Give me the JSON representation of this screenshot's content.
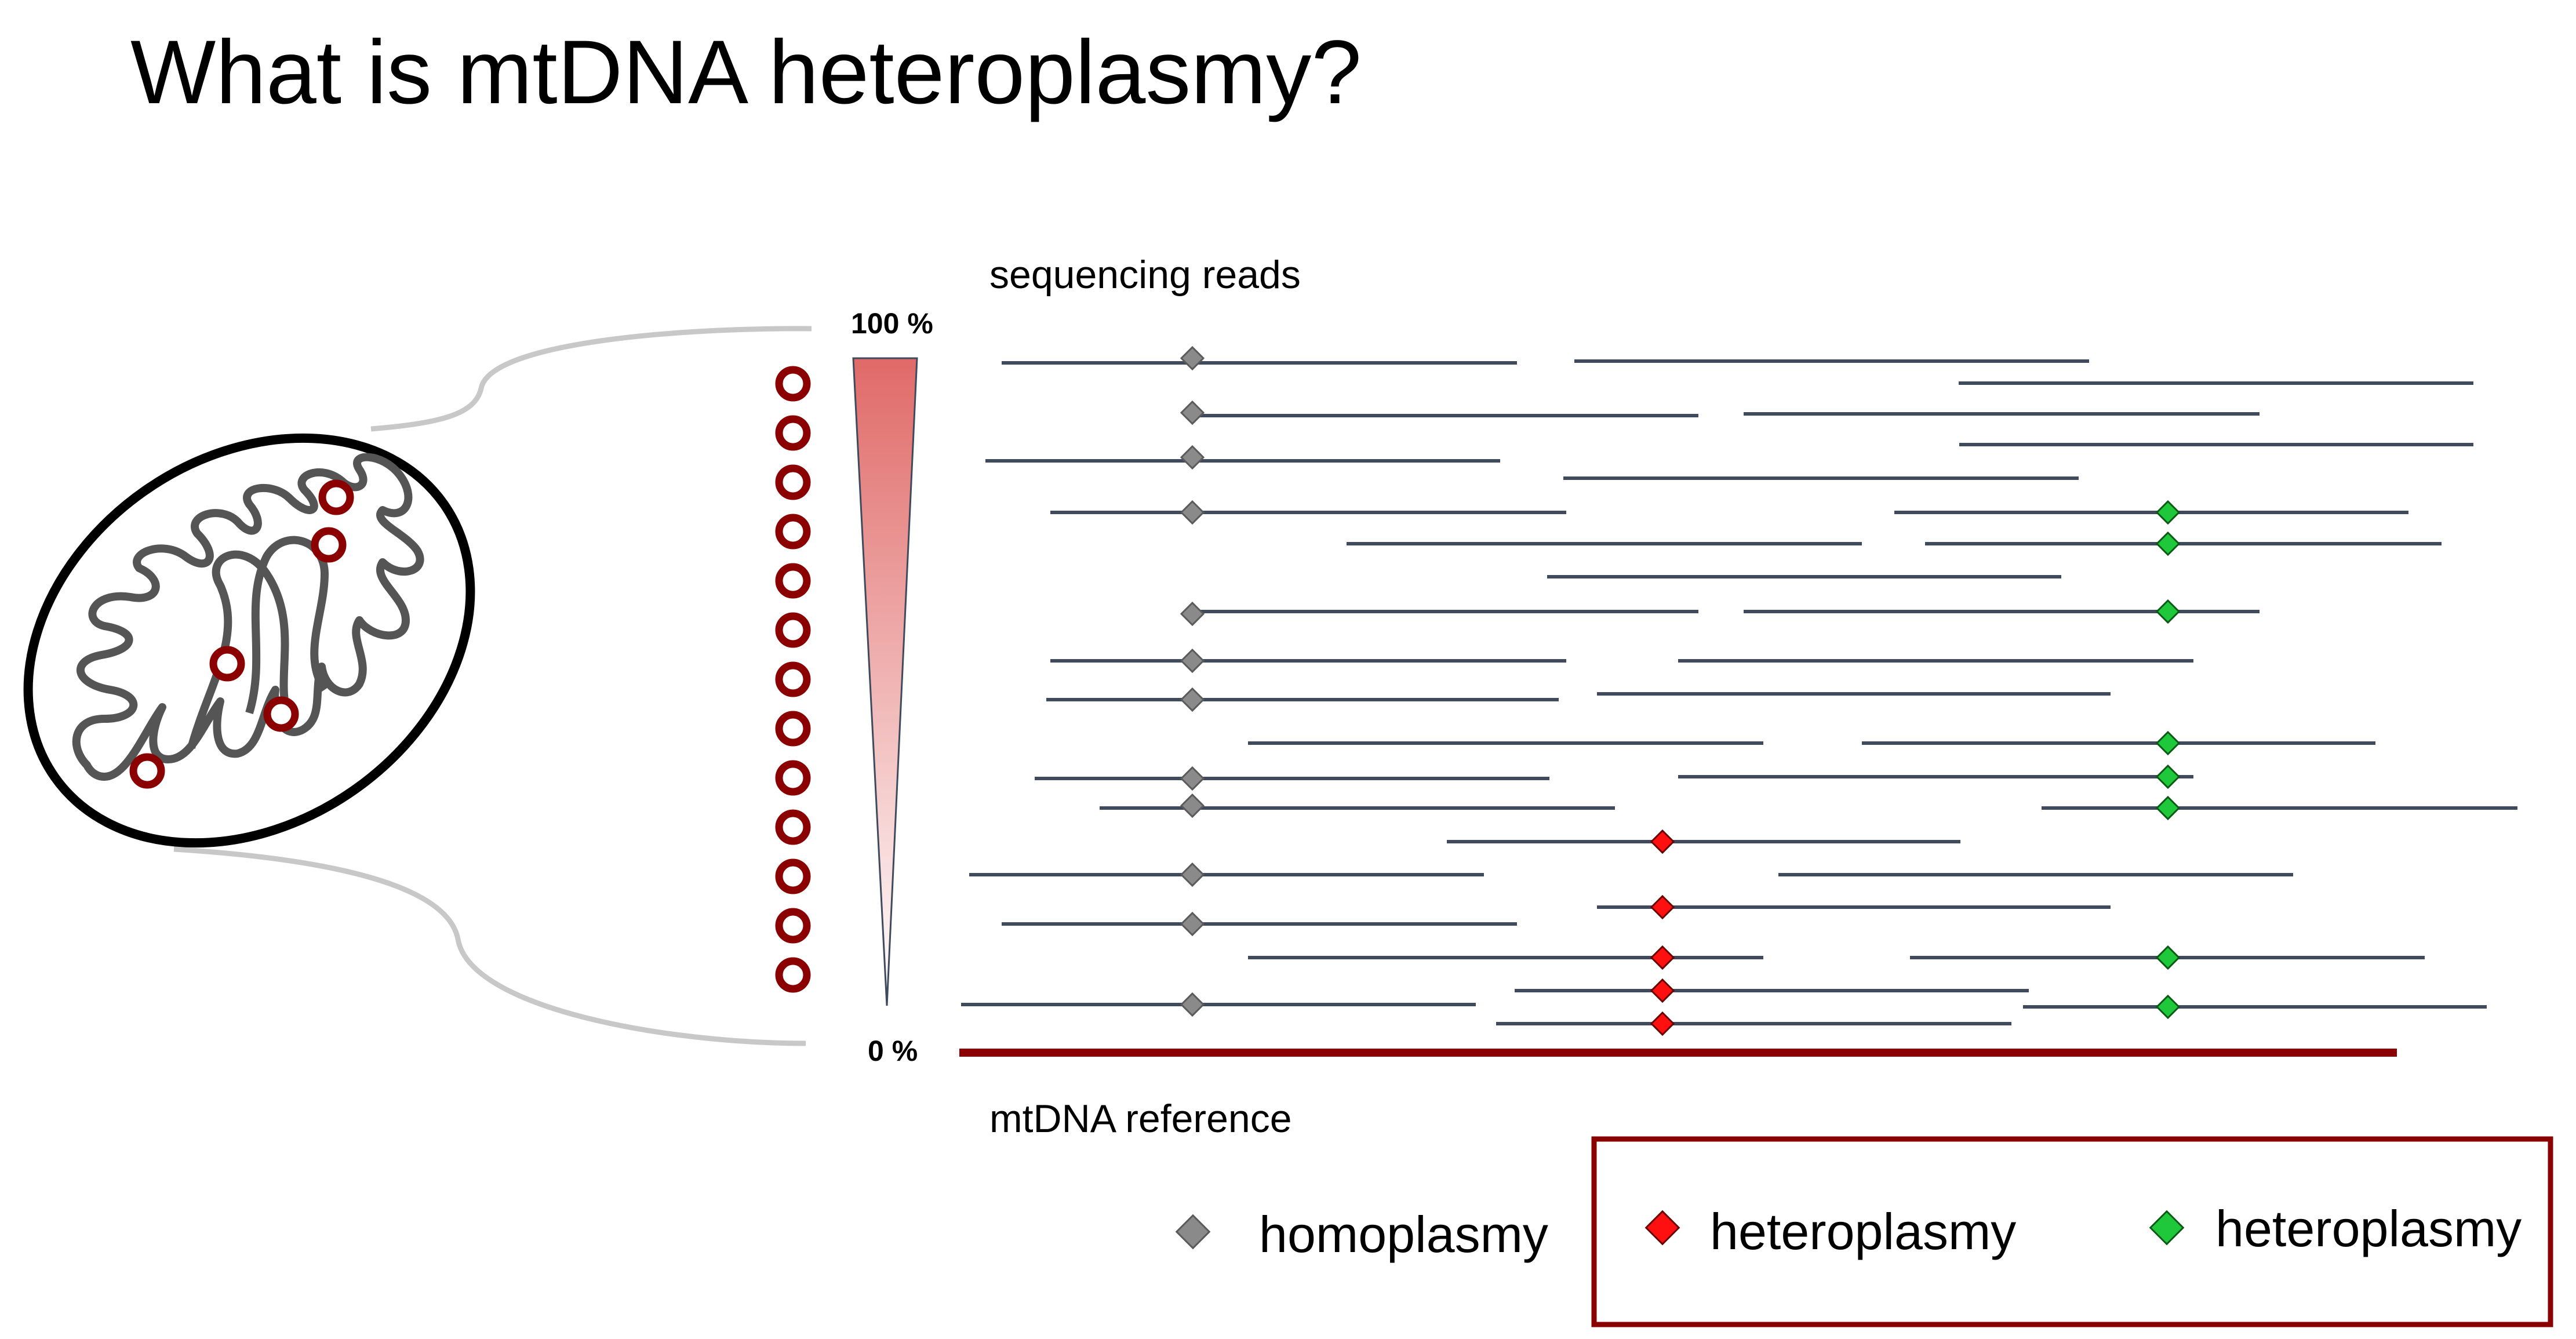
{
  "slide": {
    "title": "What is mtDNA heteroplasmy?"
  },
  "diagram": {
    "reads_label": "sequencing reads",
    "reference_label": "mtDNA reference",
    "scale_top_label": "100 %",
    "scale_bottom_label": "0 %",
    "mtdna_copy_count": 13
  },
  "legend": {
    "homoplasmy_label": "homoplasmy",
    "heteroplasmy_red_label": "heteroplasmy",
    "heteroplasmy_green_label": "heteroplasmy"
  },
  "colors": {
    "read_line": "#3f4a5c",
    "reference_line": "#8b0000",
    "homoplasmy_marker": "#8a8a8a",
    "heteroplasmy_red_marker": "#ff1010",
    "heteroplasmy_green_marker": "#1ec83a",
    "mtdna_circle": "#8b0000",
    "legend_border": "#8b0000",
    "cristae": "#555555",
    "gradient_top": "#e06a68",
    "gradient_bottom": "#ffffff"
  }
}
